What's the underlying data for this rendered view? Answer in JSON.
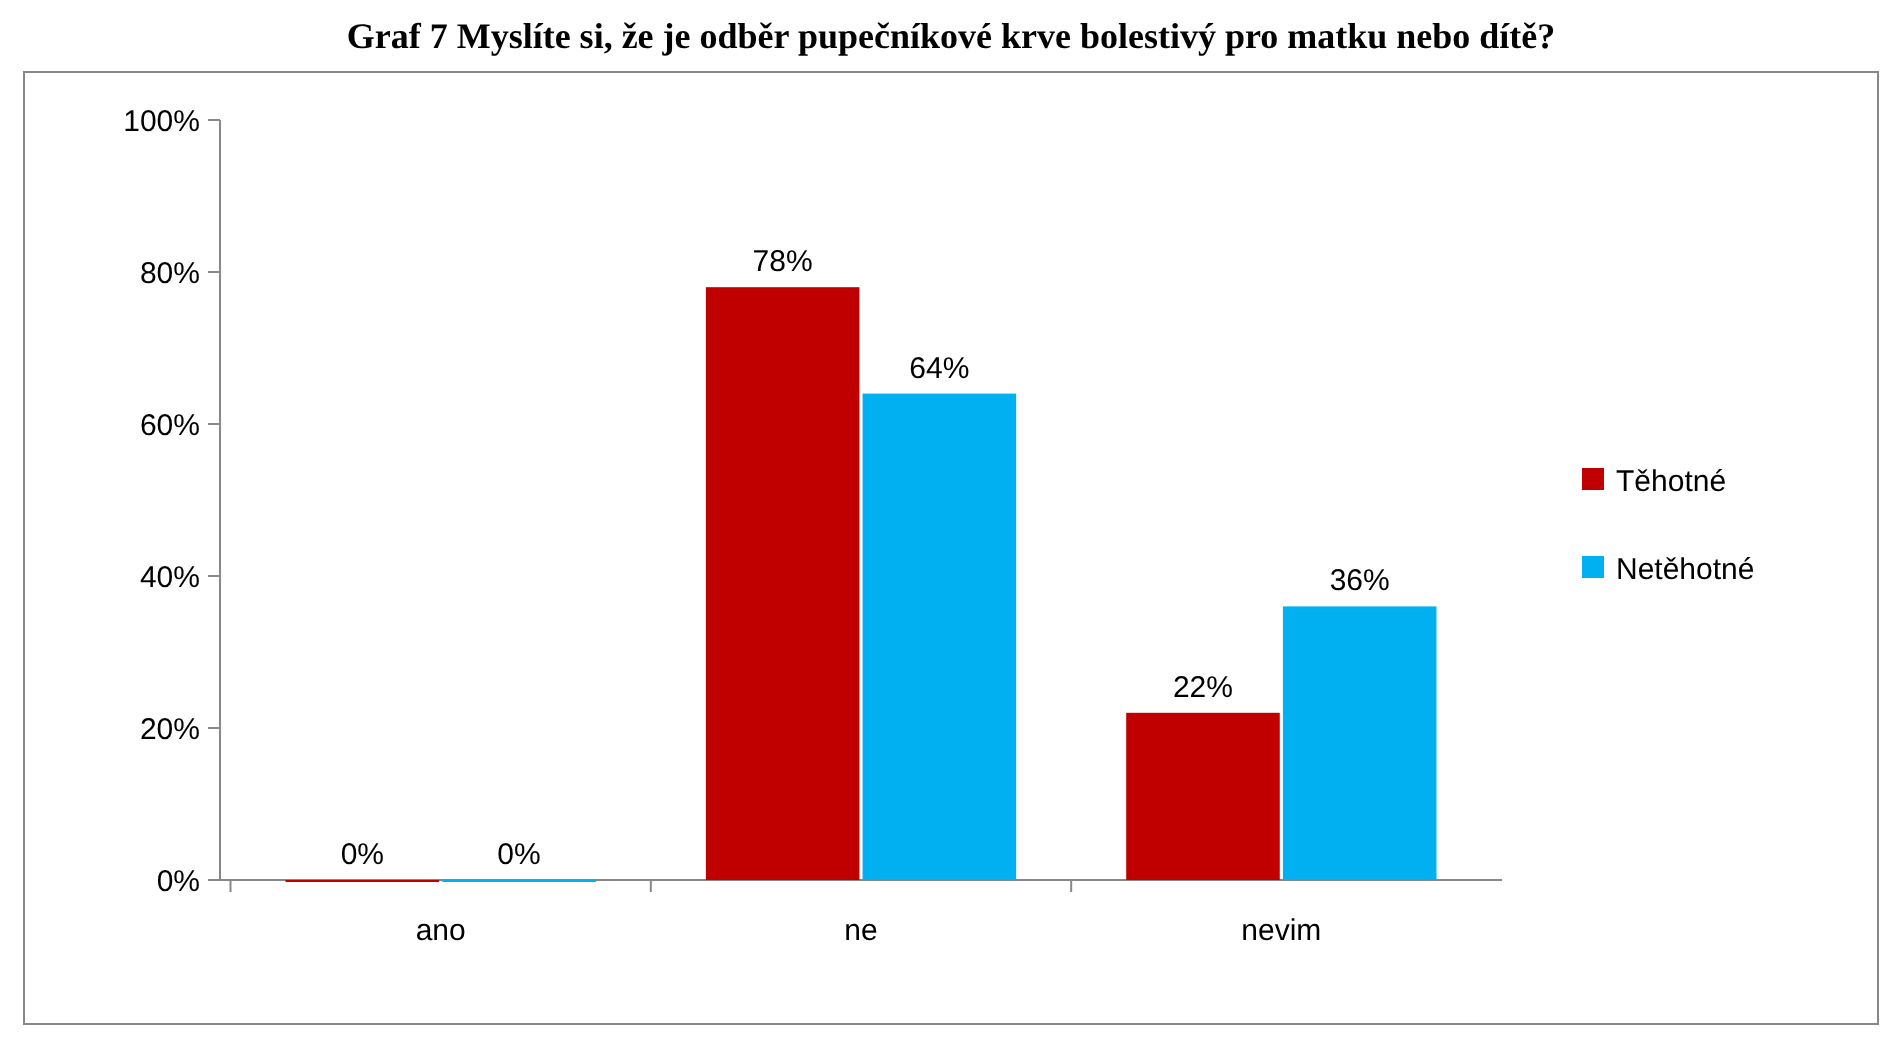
{
  "chart_data": {
    "type": "bar",
    "title": "Graf 7 Myslíte si, že je odběr pupečníkové krve bolestivý pro matku nebo dítě?",
    "categories": [
      "ano",
      "ne",
      "nevim"
    ],
    "series": [
      {
        "name": "Těhotné",
        "color": "#c00000",
        "values": [
          0,
          78,
          22
        ],
        "value_labels": [
          "0%",
          "78%",
          "22%"
        ]
      },
      {
        "name": "Netěhotné",
        "color": "#00b0f0",
        "values": [
          0,
          64,
          36
        ],
        "value_labels": [
          "0%",
          "64%",
          "36%"
        ]
      }
    ],
    "ylim": [
      0,
      100
    ],
    "yticks": [
      {
        "value": 0,
        "label": "0%"
      },
      {
        "value": 20,
        "label": "20%"
      },
      {
        "value": 40,
        "label": "40%"
      },
      {
        "value": 60,
        "label": "60%"
      },
      {
        "value": 80,
        "label": "80%"
      },
      {
        "value": 100,
        "label": "100%"
      }
    ],
    "legend": "right"
  }
}
